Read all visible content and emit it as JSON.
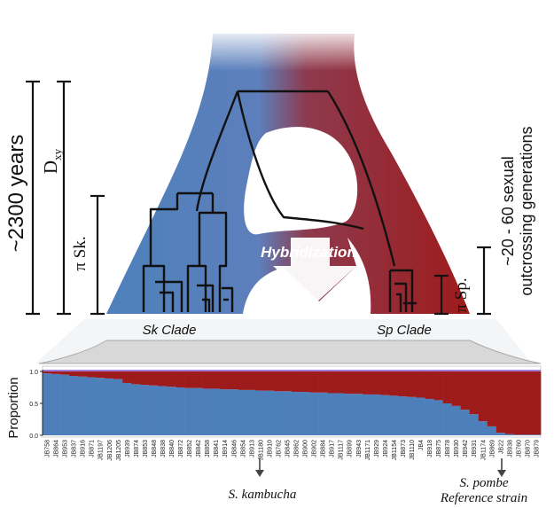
{
  "labels": {
    "time_span": "~2300 years",
    "dxy": "D",
    "dxy_sub": "xy",
    "pi_sk": "π Sk.",
    "pi_sp": "π Sp.",
    "generations_line1": "~20 - 60 sexual",
    "generations_line2": "outcrossing generations",
    "hybridization": "Hybridization",
    "sk_clade": "Sk Clade",
    "sp_clade": "Sp Clade",
    "s_kambucha": "S. kambucha",
    "s_pombe": "S. pombe",
    "reference_strain": "Reference strain"
  },
  "colors": {
    "sk_blue": "#4d80bb",
    "sp_red": "#9e1b1b",
    "purple_top": "#8a5bd0"
  },
  "chart_data": {
    "type": "bar",
    "stacked": true,
    "ylabel": "Proportion",
    "ylim": [
      0,
      1
    ],
    "yticks": [
      "0.0",
      "0.5",
      "1.0"
    ],
    "series": [
      {
        "key": "sk"
      },
      {
        "key": "sp"
      }
    ],
    "categories": [
      "JB758",
      "JB864",
      "JB953",
      "JB837",
      "JB916",
      "JB871",
      "JB1197",
      "JB1206",
      "JB1205",
      "JB939",
      "JB874",
      "JB853",
      "JB848",
      "JB838",
      "JB840",
      "JB872",
      "JB852",
      "JB842",
      "JB858",
      "JB841",
      "JB914",
      "JB846",
      "JB854",
      "JB913",
      "JB1180",
      "JB910",
      "JB762",
      "JB845",
      "JB862",
      "JB900",
      "JB902",
      "JB884",
      "JB917",
      "JB1117",
      "JB899",
      "JB943",
      "JB1171",
      "JB929",
      "JB924",
      "JB1154",
      "JB873",
      "JB1110",
      "JB4",
      "JB918",
      "JB875",
      "JB878",
      "JB930",
      "JB942",
      "JB931",
      "JB1174",
      "JB869",
      "JB22",
      "JB938",
      "JB760",
      "JB870",
      "JB879"
    ],
    "sk_values": [
      0.97,
      0.96,
      0.95,
      0.93,
      0.92,
      0.91,
      0.9,
      0.89,
      0.88,
      0.82,
      0.8,
      0.79,
      0.78,
      0.77,
      0.76,
      0.75,
      0.74,
      0.74,
      0.73,
      0.73,
      0.72,
      0.72,
      0.71,
      0.71,
      0.7,
      0.7,
      0.69,
      0.69,
      0.68,
      0.68,
      0.67,
      0.67,
      0.66,
      0.66,
      0.65,
      0.65,
      0.64,
      0.64,
      0.63,
      0.62,
      0.61,
      0.6,
      0.59,
      0.57,
      0.55,
      0.5,
      0.46,
      0.4,
      0.33,
      0.22,
      0.14,
      0.04,
      0.02,
      0.01,
      0.01,
      0.01
    ]
  }
}
